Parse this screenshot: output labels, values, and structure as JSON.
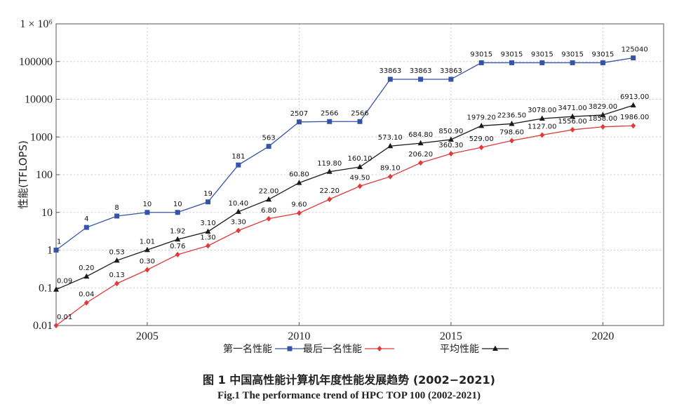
{
  "caption": {
    "cn": "图 1 中国高性能计算机年度性能发展趋势 (2002−2021)",
    "en": "Fig.1 The performance trend of HPC TOP 100 (2002-2021)"
  },
  "chart_data": {
    "type": "line",
    "ylabel": "性能(TFLOPS)",
    "xlabel": "",
    "yscale": "log",
    "xlim": [
      2002,
      2022
    ],
    "ylim": [
      0.01,
      1000000
    ],
    "xticks": [
      "2005",
      "2010",
      "2015",
      "2020"
    ],
    "yticks": [
      "0.01",
      "0.1",
      "1",
      "10",
      "100",
      "1000",
      "10000",
      "100000",
      "1 × 10⁶"
    ],
    "grid": true,
    "legend_position": "bottom",
    "x": [
      2002,
      2003,
      2004,
      2005,
      2006,
      2007,
      2008,
      2009,
      2010,
      2011,
      2012,
      2013,
      2014,
      2015,
      2016,
      2017,
      2018,
      2019,
      2020,
      2021
    ],
    "series": [
      {
        "name": "第一名性能",
        "color": "#3554a8",
        "marker": "square",
        "values": [
          1,
          4,
          8,
          10,
          10,
          19,
          181,
          563,
          2507,
          2566,
          2566,
          33863,
          33863,
          33863,
          93015,
          93015,
          93015,
          93015,
          93015,
          125040
        ],
        "labels": [
          "1",
          "4",
          "8",
          "10",
          "10",
          "19",
          "181",
          "563",
          "2507",
          "2566",
          "2566",
          "33863",
          "33863",
          "33863",
          "93015",
          "93015",
          "93015",
          "93015",
          "93015",
          "125040"
        ]
      },
      {
        "name": "最后一名性能",
        "color": "#e03a3a",
        "marker": "diamond",
        "values": [
          0.01,
          0.04,
          0.13,
          0.3,
          0.76,
          1.3,
          3.3,
          6.8,
          9.6,
          22.2,
          49.5,
          89.1,
          206.2,
          360.3,
          529.0,
          798.6,
          1127.0,
          1556.0,
          1858.0,
          1986.0
        ],
        "labels": [
          "0.01",
          "0.04",
          "0.13",
          "0.30",
          "0.76",
          "1.30",
          "3.30",
          "6.80",
          "9.60",
          "22.20",
          "49.50",
          "89.10",
          "206.20",
          "360.30",
          "529.00",
          "798.60",
          "1127.00",
          "1556.00",
          "1858.00",
          "1986.00"
        ]
      },
      {
        "name": "平均性能",
        "color": "#1a1a1a",
        "marker": "triangle",
        "values": [
          0.09,
          0.2,
          0.53,
          1.01,
          1.92,
          3.1,
          10.4,
          22.0,
          60.8,
          119.8,
          160.1,
          573.1,
          684.8,
          850.9,
          1979.2,
          2236.5,
          3078.0,
          3471.0,
          3829.0,
          6913.0
        ],
        "labels": [
          "0.09",
          "0.20",
          "0.53",
          "1.01",
          "1.92",
          "3.10",
          "10.40",
          "22.00",
          "60.80",
          "119.80",
          "160.10",
          "573.10",
          "684.80",
          "850.90",
          "1979.20",
          "2236.50",
          "3078.00",
          "3471.00",
          "3829.00",
          "6913.00"
        ]
      }
    ]
  }
}
